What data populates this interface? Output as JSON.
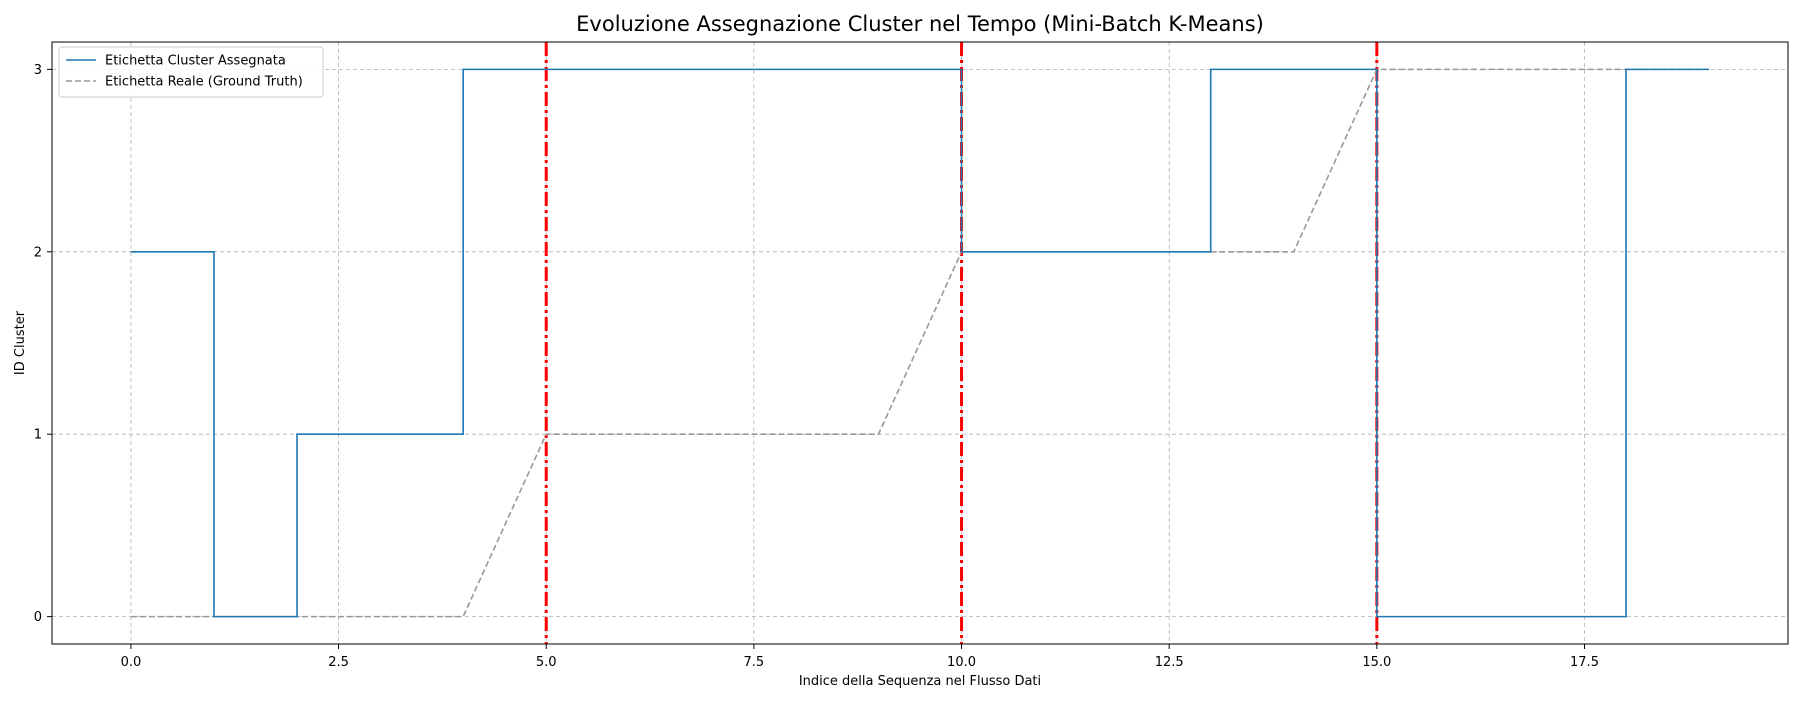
{
  "chart_data": {
    "type": "line",
    "title": "Evoluzione Assegnazione Cluster nel Tempo (Mini-Batch K-Means)",
    "xlabel": "Indice della Sequenza nel Flusso Dati",
    "ylabel": "ID Cluster",
    "xlim": [
      -0.95,
      19.95
    ],
    "ylim": [
      -0.15,
      3.15
    ],
    "xticks": [
      0.0,
      2.5,
      5.0,
      7.5,
      10.0,
      12.5,
      15.0,
      17.5
    ],
    "xtick_labels": [
      "0.0",
      "2.5",
      "5.0",
      "7.5",
      "10.0",
      "12.5",
      "15.0",
      "17.5"
    ],
    "yticks": [
      0,
      1,
      2,
      3
    ],
    "ytick_labels": [
      "0",
      "1",
      "2",
      "3"
    ],
    "grid": true,
    "legend_position": "top-left",
    "x": [
      0,
      1,
      2,
      3,
      4,
      5,
      6,
      7,
      8,
      9,
      10,
      11,
      12,
      13,
      14,
      15,
      16,
      17,
      18,
      19
    ],
    "series": [
      {
        "name": "Etichetta Cluster Assegnata",
        "style": "step-post",
        "color": "#1f77b4",
        "values": [
          2,
          0,
          1,
          1,
          3,
          3,
          3,
          3,
          3,
          3,
          2,
          2,
          2,
          3,
          3,
          0,
          0,
          0,
          3,
          3
        ]
      },
      {
        "name": "Etichetta Reale (Ground Truth)",
        "style": "dashed",
        "color": "#999999",
        "values": [
          0,
          0,
          0,
          0,
          0,
          1,
          1,
          1,
          1,
          1,
          2,
          2,
          2,
          2,
          2,
          3,
          3,
          3,
          3,
          3
        ]
      }
    ],
    "vertical_lines": {
      "x": [
        5,
        10,
        15
      ],
      "color": "#ff0000",
      "style": "dash-dot"
    }
  }
}
